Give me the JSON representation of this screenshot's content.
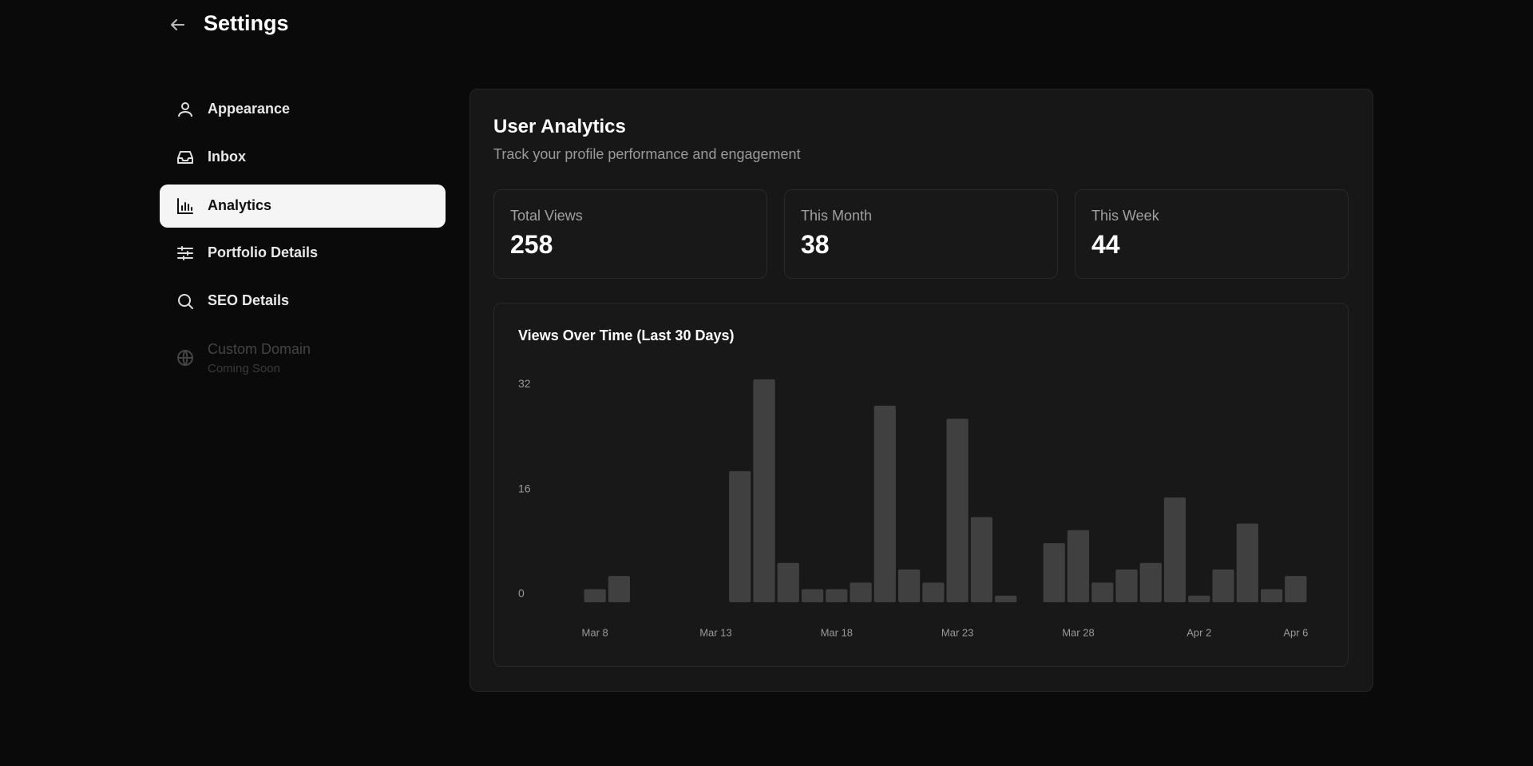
{
  "header": {
    "title": "Settings"
  },
  "nav": [
    {
      "label": "Appearance"
    },
    {
      "label": "Inbox"
    },
    {
      "label": "Analytics"
    },
    {
      "label": "Portfolio Details"
    },
    {
      "label": "SEO Details"
    },
    {
      "label": "Custom Domain",
      "note": "Coming Soon"
    }
  ],
  "analytics": {
    "title": "User Analytics",
    "subtitle": "Track your profile performance and engagement",
    "stats": [
      {
        "label": "Total Views",
        "value": 258
      },
      {
        "label": "This Month",
        "value": 38
      },
      {
        "label": "This Week",
        "value": 44
      }
    ]
  },
  "chart_data": {
    "type": "bar",
    "title": "Views Over Time (Last 30 Days)",
    "categories": [
      "Mar 8",
      null,
      null,
      null,
      null,
      "Mar 13",
      null,
      null,
      null,
      null,
      "Mar 18",
      null,
      null,
      null,
      null,
      "Mar 23",
      null,
      null,
      null,
      null,
      "Mar 28",
      null,
      null,
      null,
      null,
      "Apr 2",
      null,
      null,
      null,
      "Apr 6"
    ],
    "values": [
      2,
      4,
      0,
      0,
      0,
      0,
      20,
      34,
      6,
      2,
      2,
      3,
      30,
      5,
      3,
      28,
      13,
      1,
      0,
      9,
      11,
      3,
      5,
      6,
      16,
      1,
      5,
      12,
      2,
      4
    ],
    "color": "#404040",
    "ylim": [
      0,
      34
    ],
    "yticks": [
      0,
      16,
      32
    ],
    "grid": false
  }
}
